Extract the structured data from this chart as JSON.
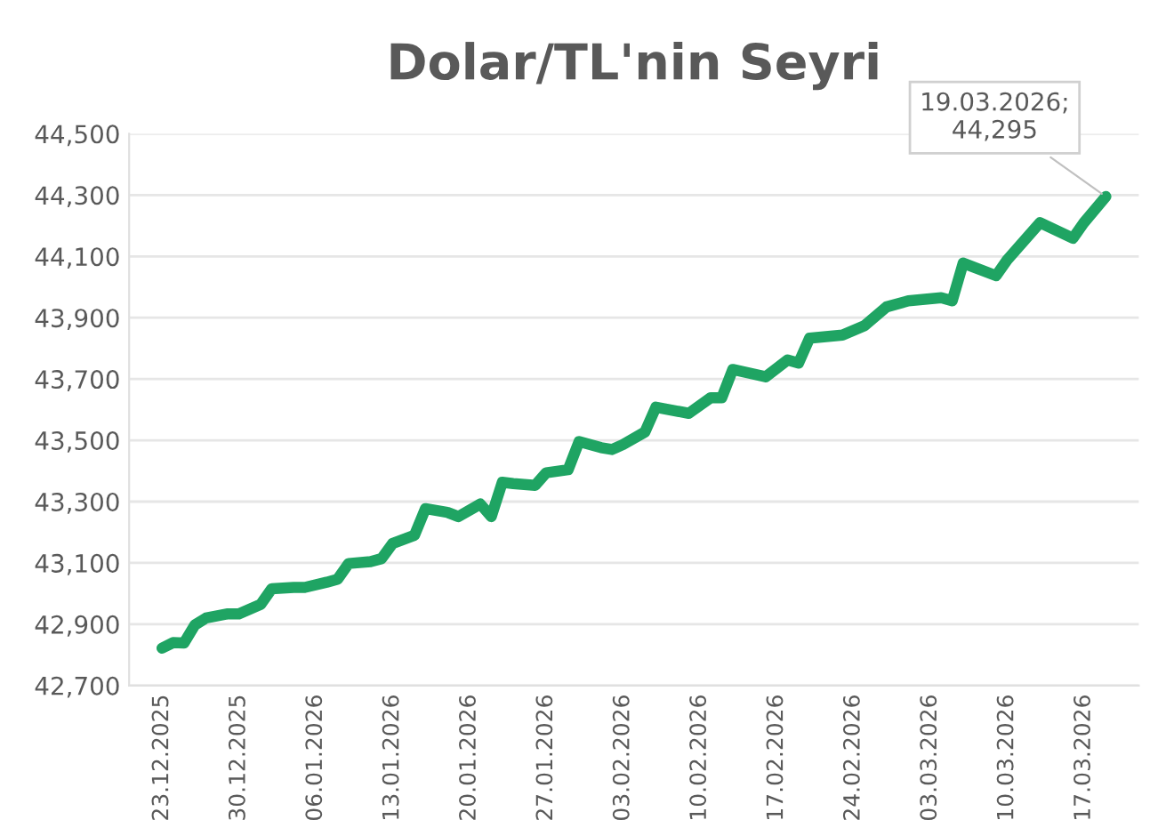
{
  "chart_data": {
    "type": "line",
    "title": "Dolar/TL'nin Seyri",
    "x": [
      "2025-12-23",
      "2025-12-24",
      "2025-12-25",
      "2025-12-26",
      "2025-12-27",
      "2025-12-29",
      "2025-12-30",
      "2026-01-01",
      "2026-01-02",
      "2026-01-04",
      "2026-01-05",
      "2026-01-07",
      "2026-01-08",
      "2026-01-09",
      "2026-01-11",
      "2026-01-12",
      "2026-01-13",
      "2026-01-15",
      "2026-01-16",
      "2026-01-18",
      "2026-01-19",
      "2026-01-21",
      "2026-01-22",
      "2026-01-23",
      "2026-01-24",
      "2026-01-26",
      "2026-01-27",
      "2026-01-29",
      "2026-01-30",
      "2026-02-01",
      "2026-02-02",
      "2026-02-03",
      "2026-02-05",
      "2026-02-06",
      "2026-02-09",
      "2026-02-11",
      "2026-02-12",
      "2026-02-13",
      "2026-02-16",
      "2026-02-18",
      "2026-02-19",
      "2026-02-20",
      "2026-02-23",
      "2026-02-25",
      "2026-02-27",
      "2026-03-01",
      "2026-03-04",
      "2026-03-05",
      "2026-03-06",
      "2026-03-09",
      "2026-03-10",
      "2026-03-13",
      "2026-03-16",
      "2026-03-17",
      "2026-03-19"
    ],
    "series": [
      {
        "color": "#1fa463",
        "values": [
          42822,
          42840,
          42839,
          42898,
          42920,
          42934,
          42934,
          42965,
          43016,
          43020,
          43020,
          43037,
          43047,
          43098,
          43104,
          43114,
          43163,
          43190,
          43277,
          43265,
          43251,
          43292,
          43251,
          43363,
          43359,
          43353,
          43394,
          43404,
          43496,
          43476,
          43470,
          43486,
          43527,
          43608,
          43588,
          43639,
          43639,
          43731,
          43707,
          43762,
          43752,
          43833,
          43843,
          43874,
          43935,
          43955,
          43965,
          43955,
          44078,
          44037,
          44088,
          44210,
          44159,
          44210,
          44295
        ]
      }
    ],
    "xlim": [
      "2025-12-20",
      "2026-03-22"
    ],
    "xticks": [
      {
        "value": "2025-12-23",
        "label": "23.12.2025"
      },
      {
        "value": "2025-12-30",
        "label": "30.12.2025"
      },
      {
        "value": "2026-01-06",
        "label": "06.01.2026"
      },
      {
        "value": "2026-01-13",
        "label": "13.01.2026"
      },
      {
        "value": "2026-01-20",
        "label": "20.01.2026"
      },
      {
        "value": "2026-01-27",
        "label": "27.01.2026"
      },
      {
        "value": "2026-02-03",
        "label": "03.02.2026"
      },
      {
        "value": "2026-02-10",
        "label": "10.02.2026"
      },
      {
        "value": "2026-02-17",
        "label": "17.02.2026"
      },
      {
        "value": "2026-02-24",
        "label": "24.02.2026"
      },
      {
        "value": "2026-03-03",
        "label": "03.03.2026"
      },
      {
        "value": "2026-03-10",
        "label": "10.03.2026"
      },
      {
        "value": "2026-03-17",
        "label": "17.03.2026"
      }
    ],
    "ylim": [
      42700,
      44500
    ],
    "yticks": [
      {
        "value": 42700,
        "label": "42,700"
      },
      {
        "value": 42900,
        "label": "42,900"
      },
      {
        "value": 43100,
        "label": "43,100"
      },
      {
        "value": 43300,
        "label": "43,300"
      },
      {
        "value": 43500,
        "label": "43,500"
      },
      {
        "value": 43700,
        "label": "43,700"
      },
      {
        "value": 43900,
        "label": "43,900"
      },
      {
        "value": 44100,
        "label": "44,100"
      },
      {
        "value": 44300,
        "label": "44,300"
      },
      {
        "value": 44500,
        "label": "44,500"
      }
    ],
    "grid": "y",
    "annotations": [
      {
        "text": "19.03.2026;\n44,295",
        "x": "2026-03-19",
        "y": 44295
      }
    ]
  }
}
